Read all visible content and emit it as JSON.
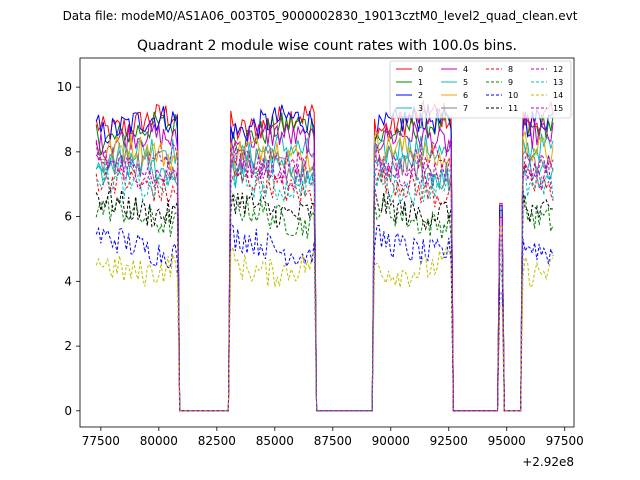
{
  "chart_data": {
    "type": "line",
    "suptitle": "Data file: modeM0/AS1A06_003T05_9000002830_19013cztM0_level2_quad_clean.evt",
    "title": "Quadrant 2 module wise count rates with 100.0s bins.",
    "xlabel": "",
    "ylabel": "",
    "x_offset_label": "+2.92e8",
    "xlim": [
      76600,
      97900
    ],
    "ylim": [
      -0.5,
      10.9
    ],
    "x_ticks": [
      77500,
      80000,
      82500,
      85000,
      87500,
      90000,
      92500,
      95000,
      97500
    ],
    "y_ticks": [
      0,
      2,
      4,
      6,
      8,
      10
    ],
    "x_tick_labels": [
      "77500",
      "80000",
      "82500",
      "85000",
      "87500",
      "90000",
      "92500",
      "95000",
      "97500"
    ],
    "y_tick_labels": [
      "0",
      "2",
      "4",
      "6",
      "8",
      "10"
    ],
    "legend_position": "top-right",
    "active_segments": [
      [
        77300,
        80800
      ],
      [
        83100,
        86700
      ],
      [
        89300,
        92600
      ],
      [
        95700,
        97000
      ]
    ],
    "spike": {
      "x": 94750,
      "frac": 0.72
    },
    "gap_value": 0,
    "series": [
      {
        "name": "0",
        "color": "#ff0000",
        "dash": "solid",
        "level": 8.9
      },
      {
        "name": "1",
        "color": "#008000",
        "dash": "solid",
        "level": 8.6
      },
      {
        "name": "2",
        "color": "#0000ff",
        "dash": "solid",
        "level": 8.8
      },
      {
        "name": "3",
        "color": "#00bfbf",
        "dash": "solid",
        "level": 7.9
      },
      {
        "name": "4",
        "color": "#bf00bf",
        "dash": "solid",
        "level": 8.3
      },
      {
        "name": "5",
        "color": "#00bfbf",
        "dash": "solid",
        "level": 7.3
      },
      {
        "name": "6",
        "color": "#e6a800",
        "dash": "solid",
        "level": 7.9
      },
      {
        "name": "7",
        "color": "#808080",
        "dash": "solid",
        "level": 7.5
      },
      {
        "name": "8",
        "color": "#ff0000",
        "dash": "dashed",
        "level": 6.9
      },
      {
        "name": "9",
        "color": "#008000",
        "dash": "dashed",
        "level": 6.0
      },
      {
        "name": "10",
        "color": "#0000ff",
        "dash": "dashed",
        "level": 5.1
      },
      {
        "name": "11",
        "color": "#000000",
        "dash": "dashed",
        "level": 6.3
      },
      {
        "name": "12",
        "color": "#bf00bf",
        "dash": "dashed",
        "level": 7.5
      },
      {
        "name": "13",
        "color": "#00bfbf",
        "dash": "dashed",
        "level": 7.1
      },
      {
        "name": "14",
        "color": "#bfbf00",
        "dash": "dashed",
        "level": 4.5
      },
      {
        "name": "15",
        "color": "#bf00bf",
        "dash": "dashed",
        "level": 7.8
      }
    ]
  }
}
